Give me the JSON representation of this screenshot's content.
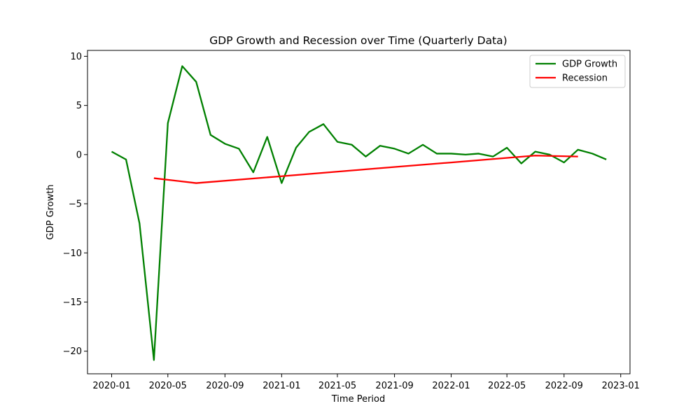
{
  "chart_data": {
    "type": "line",
    "title": "GDP Growth and Recession over Time (Quarterly Data)",
    "xlabel": "Time Period",
    "ylabel": "GDP Growth",
    "xlim": [
      "2019-11-10",
      "2023-01-21"
    ],
    "ylim": [
      -22.3,
      10.6
    ],
    "yticks": [
      10,
      5,
      0,
      -5,
      -10,
      -15,
      -20
    ],
    "xticks": [
      "2020-01",
      "2020-05",
      "2020-09",
      "2021-01",
      "2021-05",
      "2021-09",
      "2022-01",
      "2022-05",
      "2022-09",
      "2023-01"
    ],
    "grid": false,
    "legend_position": "top-right",
    "series": [
      {
        "name": "GDP Growth",
        "color": "#008000",
        "x": [
          "2020-01-01",
          "2020-02-01",
          "2020-03-01",
          "2020-04-01",
          "2020-05-01",
          "2020-06-01",
          "2020-07-01",
          "2020-08-01",
          "2020-09-01",
          "2020-10-01",
          "2020-11-01",
          "2020-12-01",
          "2021-01-01",
          "2021-02-01",
          "2021-03-01",
          "2021-04-01",
          "2021-05-01",
          "2021-06-01",
          "2021-07-01",
          "2021-08-01",
          "2021-09-01",
          "2021-10-01",
          "2021-11-01",
          "2021-12-01",
          "2022-01-01",
          "2022-02-01",
          "2022-03-01",
          "2022-04-01",
          "2022-05-01",
          "2022-06-01",
          "2022-07-01",
          "2022-08-01",
          "2022-09-01",
          "2022-10-01",
          "2022-11-01",
          "2022-12-01"
        ],
        "values": [
          0.3,
          -0.5,
          -7.0,
          -20.9,
          3.2,
          9.0,
          7.4,
          2.0,
          1.1,
          0.6,
          -1.8,
          1.8,
          -2.9,
          0.7,
          2.3,
          3.1,
          1.3,
          1.0,
          -0.2,
          0.9,
          0.6,
          0.1,
          1.0,
          0.1,
          0.1,
          0.0,
          0.1,
          -0.2,
          0.7,
          -0.9,
          0.3,
          0.0,
          -0.8,
          0.5,
          0.1,
          -0.5
        ]
      },
      {
        "name": "Recession",
        "color": "#ff0000",
        "x": [
          "2020-04-01",
          "2020-07-01",
          "2021-01-01",
          "2021-07-01",
          "2022-01-01",
          "2022-07-01",
          "2022-10-01"
        ],
        "values": [
          -2.4,
          -2.9,
          -2.2,
          -1.5,
          -0.8,
          -0.1,
          -0.2
        ]
      }
    ]
  }
}
